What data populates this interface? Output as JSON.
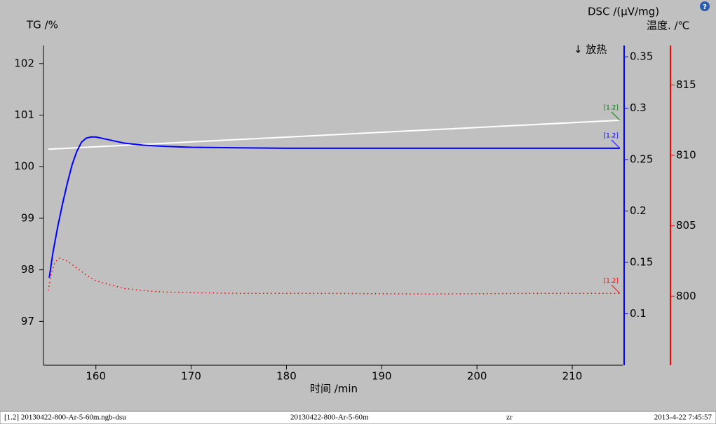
{
  "chart_data": {
    "type": "line",
    "x_label": "时间 /min",
    "y_label": "TG /%",
    "y2_label": "DSC /(μV/mg)",
    "y3_label": "温度. /℃",
    "annotation": "↓ 放热",
    "xlim": [
      154.5,
      215.3
    ],
    "xticks": [
      160,
      170,
      180,
      190,
      200,
      210
    ],
    "ylim": [
      96.15,
      102.35
    ],
    "yticks": [
      97,
      98,
      99,
      100,
      101,
      102
    ],
    "y2lim": [
      0.05,
      0.361
    ],
    "y2ticks": [
      0.1,
      0.15,
      0.2,
      0.25,
      0.3,
      0.35
    ],
    "y2color": "#0000ff",
    "y3lim": [
      795.1,
      817.8
    ],
    "y3ticks": [
      800,
      805,
      810,
      815
    ],
    "y3color": "#ff0000",
    "series": [
      {
        "name": "[1.2]",
        "color": "#ffffff",
        "label_color": "#008000",
        "style": "solid",
        "axis": "y",
        "x": [
          155,
          185,
          215
        ],
        "values": [
          100.34,
          100.62,
          100.9
        ]
      },
      {
        "name": "[1.2]",
        "color": "#0000ff",
        "label_color": "#0000ff",
        "style": "solid",
        "axis": "y2",
        "x": [
          155.1,
          155.5,
          156,
          156.5,
          157,
          157.5,
          158,
          158.5,
          159,
          159.5,
          160,
          161,
          162,
          163,
          165,
          167,
          170,
          175,
          180,
          190,
          200,
          215
        ],
        "values": [
          0.135,
          0.16,
          0.185,
          0.207,
          0.227,
          0.245,
          0.258,
          0.267,
          0.271,
          0.272,
          0.272,
          0.27,
          0.268,
          0.266,
          0.264,
          0.263,
          0.262,
          0.2615,
          0.261,
          0.261,
          0.261,
          0.261
        ]
      },
      {
        "name": "[1.2]",
        "color": "#ff0000",
        "label_color": "#ff0000",
        "style": "dotted",
        "axis": "y3",
        "x": [
          155,
          155.3,
          155.7,
          156.2,
          157,
          158,
          159,
          160,
          161.5,
          163,
          165,
          167,
          170,
          175,
          185,
          195,
          205,
          215
        ],
        "values": [
          800.4,
          801.6,
          802.4,
          802.7,
          802.5,
          802.0,
          801.5,
          801.1,
          800.8,
          800.55,
          800.4,
          800.3,
          800.25,
          800.2,
          800.2,
          800.15,
          800.2,
          800.2
        ]
      }
    ]
  },
  "status_bar": {
    "file": "[1.2] 20130422-800-Ar-5-60m.ngb-dsu",
    "sample": "20130422-800-Ar-5-60m",
    "operator": "zr",
    "datetime": "2013-4-22 7:45:57"
  },
  "help_icon": "?"
}
